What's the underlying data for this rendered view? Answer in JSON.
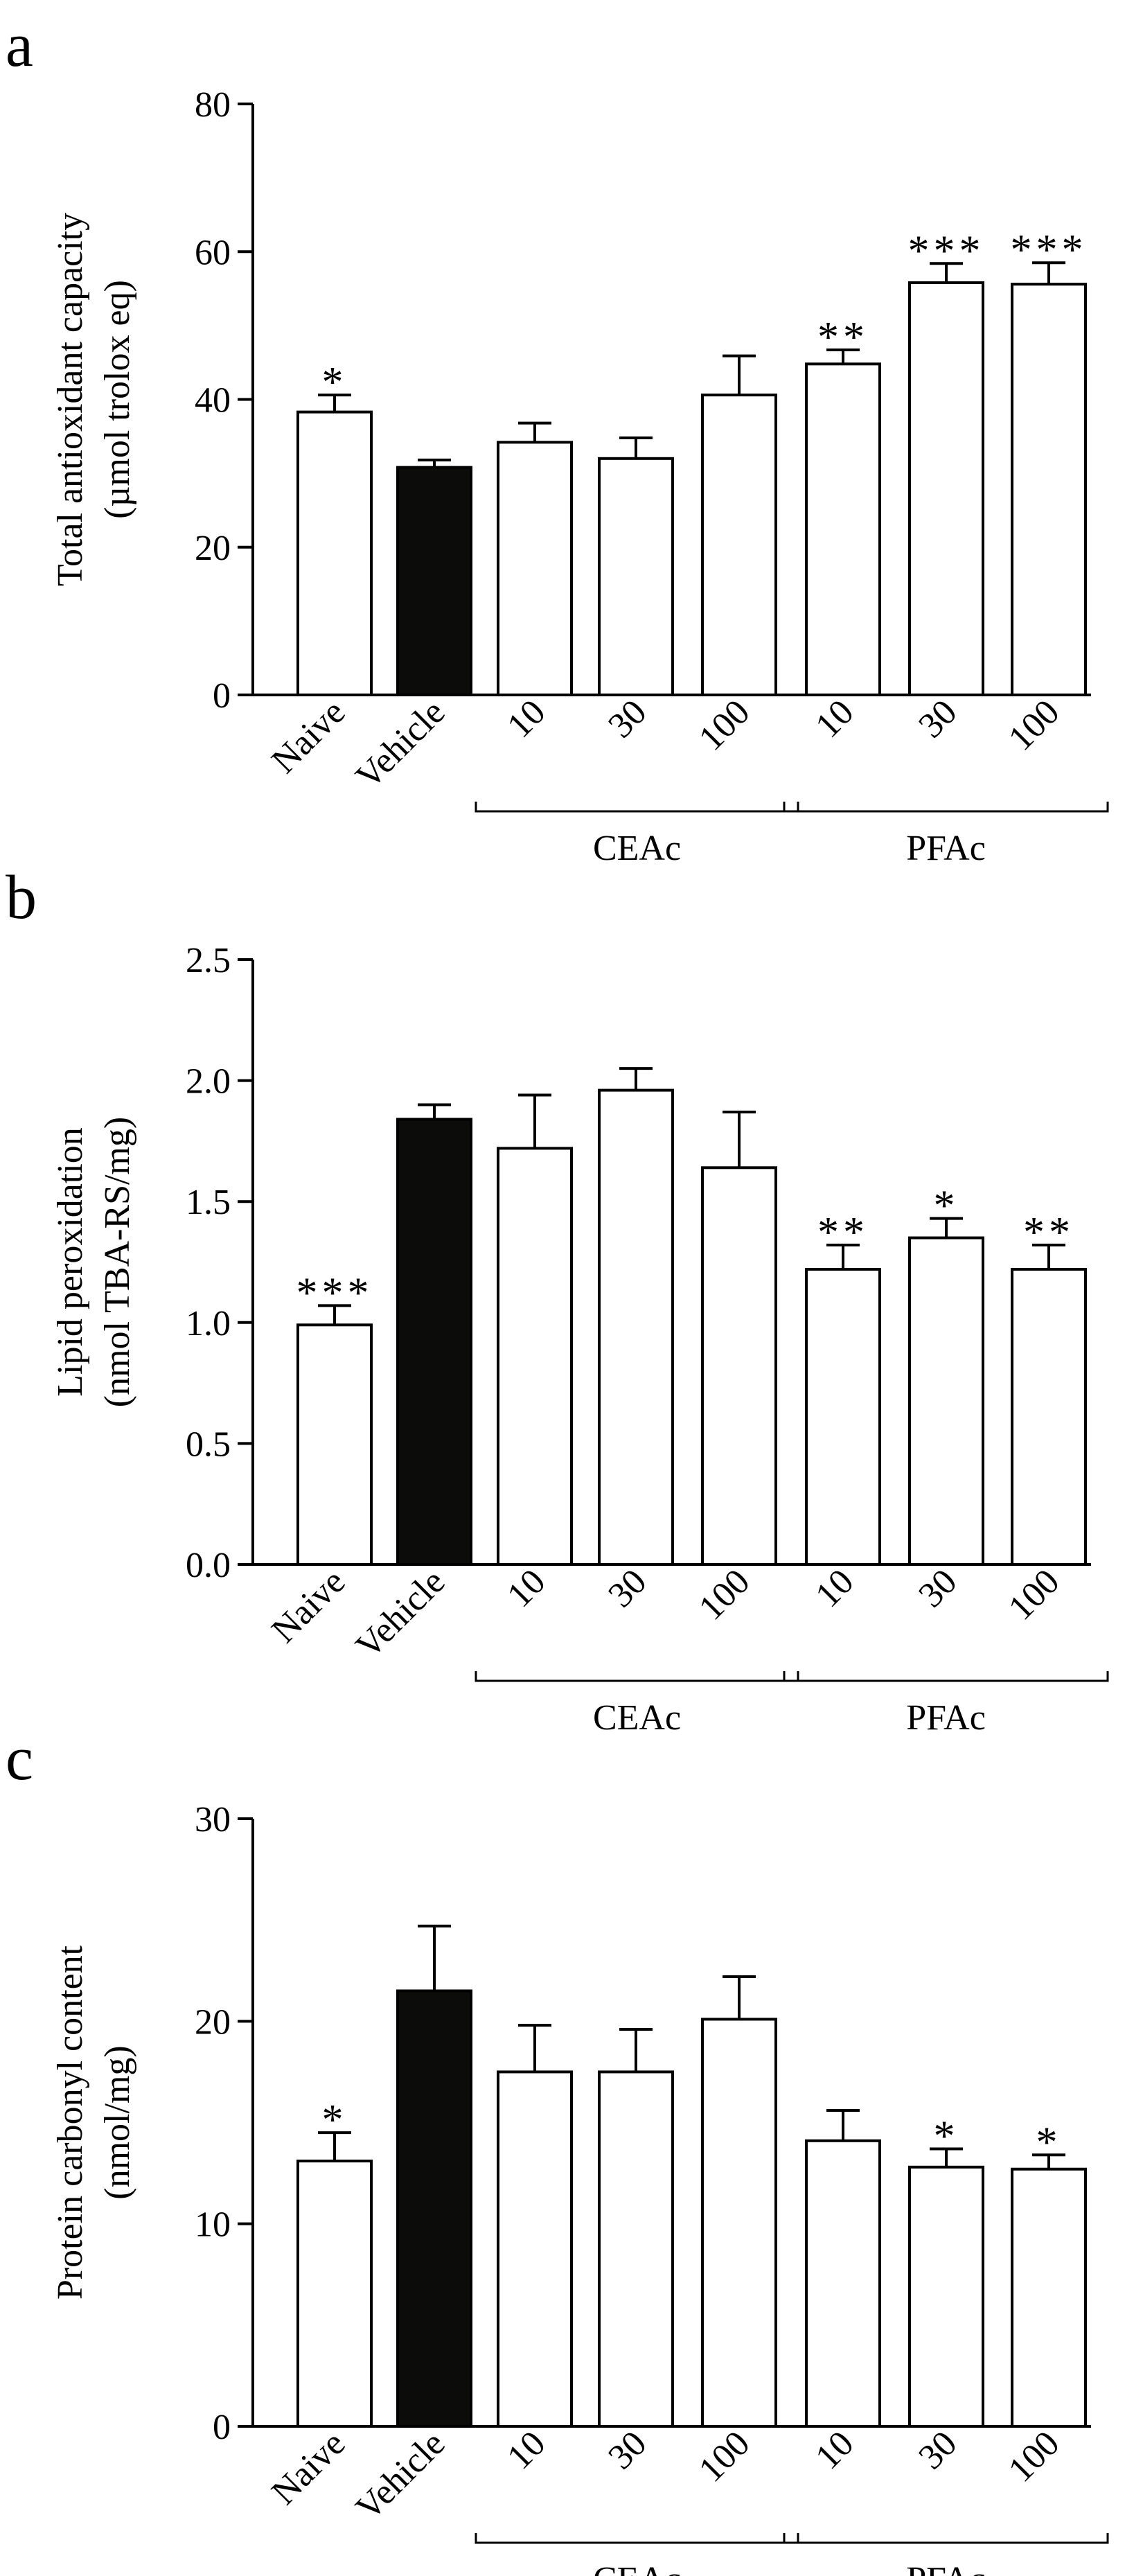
{
  "chart_data": [
    {
      "panel": "a",
      "type": "bar",
      "ylabel_line1": "Total antioxidant capacity",
      "ylabel_line2": "(µmol trolox eq)",
      "ylim": [
        0,
        80
      ],
      "yticks": [
        0,
        20,
        40,
        60,
        80
      ],
      "categories": [
        "Naive",
        "Vehicle",
        "10",
        "30",
        "100",
        "10",
        "30",
        "100"
      ],
      "values": [
        38.3,
        30.8,
        34.2,
        32.0,
        40.6,
        44.8,
        55.8,
        55.6
      ],
      "errors": [
        2.3,
        1.0,
        2.6,
        2.8,
        5.3,
        1.9,
        2.6,
        2.9
      ],
      "significance": [
        "*",
        "",
        "",
        "",
        "",
        "**",
        "***",
        "***"
      ],
      "fill": [
        "#ffffff",
        "#0c0d0a",
        "#ffffff",
        "#ffffff",
        "#ffffff",
        "#ffffff",
        "#ffffff",
        "#ffffff"
      ],
      "groups": [
        {
          "label": "CEAc",
          "start": 2,
          "end": 4
        },
        {
          "label": "PFAc",
          "start": 5,
          "end": 7
        }
      ]
    },
    {
      "panel": "b",
      "type": "bar",
      "ylabel_line1": "Lipid peroxidation",
      "ylabel_line2": "(nmol TBA-RS/mg)",
      "ylim": [
        0,
        2.5
      ],
      "yticks": [
        0,
        0.5,
        1.0,
        1.5,
        2.0,
        2.5
      ],
      "ytick_labels": [
        "0.0",
        "0.5",
        "1.0",
        "1.5",
        "2.0",
        "2.5"
      ],
      "categories": [
        "Naive",
        "Vehicle",
        "10",
        "30",
        "100",
        "10",
        "30",
        "100"
      ],
      "values": [
        0.99,
        1.84,
        1.72,
        1.96,
        1.64,
        1.22,
        1.35,
        1.22
      ],
      "errors": [
        0.08,
        0.06,
        0.22,
        0.09,
        0.23,
        0.1,
        0.08,
        0.1
      ],
      "significance": [
        "***",
        "",
        "",
        "",
        "",
        "**",
        "*",
        "**"
      ],
      "fill": [
        "#ffffff",
        "#0c0d0a",
        "#ffffff",
        "#ffffff",
        "#ffffff",
        "#ffffff",
        "#ffffff",
        "#ffffff"
      ],
      "groups": [
        {
          "label": "CEAc",
          "start": 2,
          "end": 4
        },
        {
          "label": "PFAc",
          "start": 5,
          "end": 7
        }
      ]
    },
    {
      "panel": "c",
      "type": "bar",
      "ylabel_line1": "Protein carbonyl content",
      "ylabel_line2": "(nmol/mg)",
      "ylim": [
        0,
        30
      ],
      "yticks": [
        0,
        10,
        20,
        30
      ],
      "categories": [
        "Naive",
        "Vehicle",
        "10",
        "30",
        "100",
        "10",
        "30",
        "100"
      ],
      "values": [
        13.1,
        21.5,
        17.5,
        17.5,
        20.1,
        14.1,
        12.8,
        12.7
      ],
      "errors": [
        1.4,
        3.2,
        2.3,
        2.1,
        2.1,
        1.5,
        0.9,
        0.7
      ],
      "significance": [
        "*",
        "",
        "",
        "",
        "",
        "",
        "*",
        "*"
      ],
      "fill": [
        "#ffffff",
        "#0c0d0a",
        "#ffffff",
        "#ffffff",
        "#ffffff",
        "#ffffff",
        "#ffffff",
        "#ffffff"
      ],
      "groups": [
        {
          "label": "CEAc",
          "start": 2,
          "end": 4
        },
        {
          "label": "PFAc",
          "start": 5,
          "end": 7
        }
      ]
    }
  ]
}
